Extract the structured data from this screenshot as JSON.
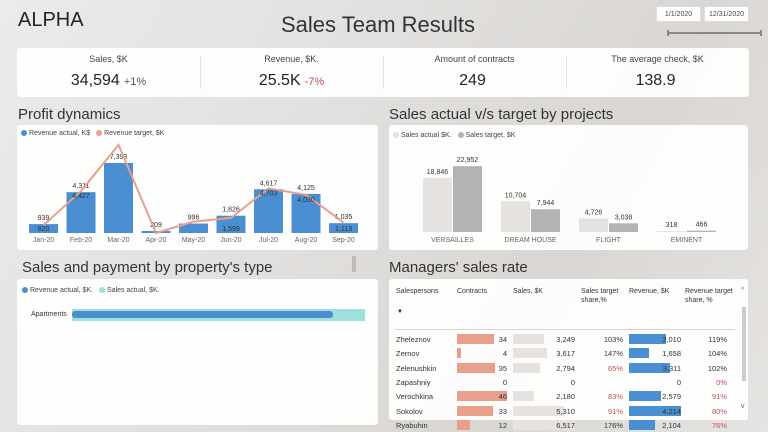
{
  "header": {
    "brand": "ALPHA",
    "title": "Sales Team Results",
    "date_from": "1/1/2020",
    "date_to": "12/31/2020"
  },
  "kpis": [
    {
      "label": "Sales, $K",
      "value": "34,594",
      "delta": "+1%",
      "delta_color": "#555555"
    },
    {
      "label": "Revenue, $K.",
      "value": "25.5K",
      "delta": "-7%",
      "delta_color": "#c0504d"
    },
    {
      "label": "Amount of contracts",
      "value": "249",
      "delta": ""
    },
    {
      "label": "The average check, $K",
      "value": "138.9",
      "delta": ""
    }
  ],
  "profit": {
    "title": "Profit dynamics",
    "legend": [
      "Revenue actual, K$",
      "Revenue target, $K"
    ],
    "colors": {
      "actual": "#4a8fd1",
      "target": "#e8a08a"
    }
  },
  "projects": {
    "title": "Sales actual v/s target by projects",
    "legend": [
      "Sales actual $K.",
      "Sales target, $K"
    ],
    "colors": {
      "actual": "#e6e2e0",
      "target": "#b3b3b3"
    }
  },
  "property": {
    "title": "Sales and payment by property's type",
    "legend": [
      "Revenue actual, $K.",
      "Sales actual, $K."
    ],
    "category": "Apartments",
    "colors": {
      "revenue": "#4a8fd1",
      "sales": "#9fe0dc"
    }
  },
  "managers": {
    "title": "Managers' sales rate",
    "columns": [
      "Salespersons",
      "Contracts",
      "Sales, $K",
      "Sales target share,%",
      "Revenue, $K",
      "Revenue target share, %"
    ],
    "sort_icon": "sort-down-icon",
    "rows": [
      {
        "name": "Zheleznov",
        "contracts": 34,
        "sales": "3,249",
        "sales_share": "103%",
        "revenue": "3,010",
        "rev_share": "119%",
        "sales_v": 3249,
        "rev_v": 3010,
        "ss_red": false,
        "rs_red": false
      },
      {
        "name": "Zernov",
        "contracts": 4,
        "sales": "3,617",
        "sales_share": "147%",
        "revenue": "1,658",
        "rev_share": "104%",
        "sales_v": 3617,
        "rev_v": 1658,
        "ss_red": false,
        "rs_red": false
      },
      {
        "name": "Zelenushkin",
        "contracts": 35,
        "sales": "2,794",
        "sales_share": "65%",
        "revenue": "3,311",
        "rev_share": "102%",
        "sales_v": 2794,
        "rev_v": 3311,
        "ss_red": true,
        "rs_red": false
      },
      {
        "name": "Zapashniy",
        "contracts": 0,
        "sales": "0",
        "sales_share": "",
        "revenue": "0",
        "rev_share": "0%",
        "sales_v": 0,
        "rev_v": 0,
        "ss_red": false,
        "rs_red": true
      },
      {
        "name": "Verochkina",
        "contracts": 46,
        "sales": "2,180",
        "sales_share": "83%",
        "revenue": "2,579",
        "rev_share": "91%",
        "sales_v": 2180,
        "rev_v": 2579,
        "ss_red": true,
        "rs_red": true
      },
      {
        "name": "Sokolov",
        "contracts": 33,
        "sales": "5,310",
        "sales_share": "91%",
        "revenue": "4,214",
        "rev_share": "80%",
        "sales_v": 5310,
        "rev_v": 4214,
        "ss_red": true,
        "rs_red": true
      },
      {
        "name": "Ryabuhin",
        "contracts": 12,
        "sales": "6,517",
        "sales_share": "176%",
        "revenue": "2,104",
        "rev_share": "76%",
        "sales_v": 6517,
        "rev_v": 2104,
        "ss_red": false,
        "rs_red": true
      }
    ],
    "colors": {
      "contracts": "#e8a08a",
      "sales": "#e6e2e0",
      "revenue": "#4a8fd1",
      "red": "#c0504d"
    }
  },
  "chart_data": [
    {
      "type": "bar",
      "title": "Profit dynamics",
      "categories": [
        "Jan-20",
        "Feb-20",
        "Mar-20",
        "Apr-20",
        "May-20",
        "Jun-20",
        "Jul-20",
        "Aug-20",
        "Sep-20"
      ],
      "series": [
        {
          "name": "Revenue actual, K$",
          "type": "bar",
          "values": [
            939,
            4311,
            7393,
            209,
            996,
            1826,
            4617,
            4125,
            1035
          ]
        },
        {
          "name": "Revenue target, $K",
          "type": "line",
          "values": [
            820,
            4427,
            9300,
            0,
            1200,
            1599,
            4703,
            4030,
            1113
          ],
          "labels": [
            "820",
            "4,427",
            "",
            "",
            "",
            "1,599",
            "4,703",
            "4,030",
            "1,113"
          ]
        }
      ],
      "ylim": [
        0,
        9500
      ]
    },
    {
      "type": "bar",
      "title": "Sales actual v/s target by projects",
      "categories": [
        "VERSAILLES",
        "DREAM HOUSE",
        "FLIGHT",
        "EMINENT"
      ],
      "series": [
        {
          "name": "Sales actual $K.",
          "values": [
            18846,
            10704,
            4726,
            318
          ]
        },
        {
          "name": "Sales target, $K",
          "values": [
            22952,
            7944,
            3038,
            466
          ]
        }
      ],
      "ylim": [
        0,
        23500
      ]
    },
    {
      "type": "bar",
      "orientation": "horizontal",
      "title": "Sales and payment by property's type",
      "categories": [
        "Apartments"
      ],
      "series": [
        {
          "name": "Revenue actual, $K.",
          "values": [
            25500
          ]
        },
        {
          "name": "Sales actual, $K.",
          "values": [
            34594
          ]
        }
      ]
    }
  ]
}
